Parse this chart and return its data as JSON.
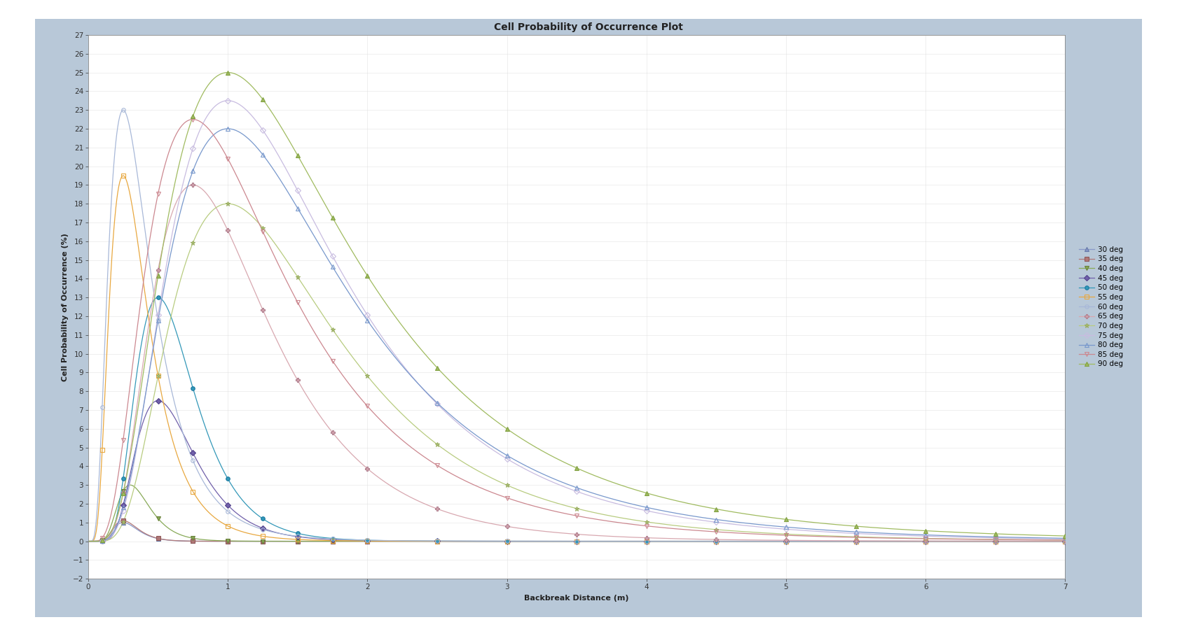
{
  "title": "Cell Probability of Occurrence Plot",
  "xlabel": "Backbreak Distance (m)",
  "ylabel": "Cell Probability of Occurrence (%)",
  "xlim": [
    0,
    7
  ],
  "ylim": [
    -2,
    27
  ],
  "outer_bg": "#ffffff",
  "frame_color": "#b8c8d8",
  "plot_bg_color": "#ffffff",
  "title_fontsize": 10,
  "axis_label_fontsize": 8,
  "tick_fontsize": 7.5,
  "legend_fontsize": 7.5,
  "series": [
    {
      "label": "30 deg",
      "color": "#8898c8",
      "marker": "^",
      "mfc": "#8898c8",
      "mec": "#6678a8",
      "peak_x": 0.25,
      "peak_y": 1.0,
      "sigma": 0.35,
      "ms": 4
    },
    {
      "label": "35 deg",
      "color": "#b07878",
      "marker": "s",
      "mfc": "#b07878",
      "mec": "#905858",
      "peak_x": 0.25,
      "peak_y": 1.1,
      "sigma": 0.35,
      "ms": 4
    },
    {
      "label": "40 deg",
      "color": "#88aa58",
      "marker": "v",
      "mfc": "#88aa58",
      "mec": "#688038",
      "peak_x": 0.3,
      "peak_y": 3.0,
      "sigma": 0.38,
      "ms": 4
    },
    {
      "label": "45 deg",
      "color": "#7060aa",
      "marker": "D",
      "mfc": "#7060aa",
      "mec": "#50408a",
      "peak_x": 0.5,
      "peak_y": 7.5,
      "sigma": 0.42,
      "ms": 4
    },
    {
      "label": "50 deg",
      "color": "#3398b8",
      "marker": "o",
      "mfc": "#3398b8",
      "mec": "#1878a0",
      "peak_x": 0.5,
      "peak_y": 13.0,
      "sigma": 0.42,
      "ms": 4
    },
    {
      "label": "55 deg",
      "color": "#e8a840",
      "marker": "s",
      "mfc": "none",
      "mec": "#e8a840",
      "peak_x": 0.25,
      "peak_y": 19.5,
      "sigma": 0.55,
      "ms": 4
    },
    {
      "label": "60 deg",
      "color": "#a8b8d8",
      "marker": "o",
      "mfc": "none",
      "mec": "#a8b8d8",
      "peak_x": 0.25,
      "peak_y": 23.0,
      "sigma": 0.6,
      "ms": 4
    },
    {
      "label": "65 deg",
      "color": "#d8a8b0",
      "marker": "P",
      "mfc": "#d8a8b0",
      "mec": "#b08090",
      "peak_x": 0.75,
      "peak_y": 19.0,
      "sigma": 0.55,
      "ms": 4
    },
    {
      "label": "70 deg",
      "color": "#b8cc80",
      "marker": "*",
      "mfc": "#b8cc80",
      "mec": "#98ac60",
      "peak_x": 1.0,
      "peak_y": 18.0,
      "sigma": 0.58,
      "ms": 5
    },
    {
      "label": "75 deg",
      "color": "#c8bce0",
      "marker": "D",
      "mfc": "none",
      "mec": "#c8bce0",
      "peak_x": 1.0,
      "peak_y": 23.5,
      "sigma": 0.6,
      "ms": 4
    },
    {
      "label": "80 deg",
      "color": "#7898cc",
      "marker": "^",
      "mfc": "none",
      "mec": "#7898cc",
      "peak_x": 1.0,
      "peak_y": 22.0,
      "sigma": 0.62,
      "ms": 4
    },
    {
      "label": "85 deg",
      "color": "#cc8890",
      "marker": "v",
      "mfc": "none",
      "mec": "#cc8890",
      "peak_x": 0.75,
      "peak_y": 22.5,
      "sigma": 0.65,
      "ms": 4
    },
    {
      "label": "90 deg",
      "color": "#a0bb60",
      "marker": "^",
      "mfc": "#a0bb60",
      "mec": "#80a040",
      "peak_x": 1.0,
      "peak_y": 25.0,
      "sigma": 0.65,
      "ms": 4
    }
  ],
  "xticks": [
    0,
    1,
    2,
    3,
    4,
    5,
    6,
    7
  ],
  "yticks": [
    -2,
    -1,
    0,
    1,
    2,
    3,
    4,
    5,
    6,
    7,
    8,
    9,
    10,
    11,
    12,
    13,
    14,
    15,
    16,
    17,
    18,
    19,
    20,
    21,
    22,
    23,
    24,
    25,
    26,
    27
  ]
}
